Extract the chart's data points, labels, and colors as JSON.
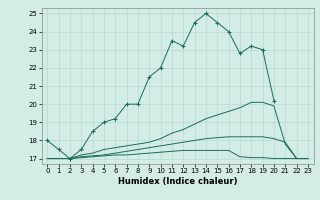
{
  "title": "",
  "xlabel": "Humidex (Indice chaleur)",
  "xlim": [
    -0.5,
    23.5
  ],
  "ylim": [
    16.7,
    25.3
  ],
  "yticks": [
    17,
    18,
    19,
    20,
    21,
    22,
    23,
    24,
    25
  ],
  "xticks": [
    0,
    1,
    2,
    3,
    4,
    5,
    6,
    7,
    8,
    9,
    10,
    11,
    12,
    13,
    14,
    15,
    16,
    17,
    18,
    19,
    20,
    21,
    22,
    23
  ],
  "bg_color": "#d4ece6",
  "line_color": "#1a6b5e",
  "grid_color": "#b8d8d0",
  "lines": [
    {
      "x": [
        0,
        1,
        2,
        3,
        4,
        5,
        6,
        7,
        8,
        9,
        10,
        11,
        12,
        13,
        14,
        15,
        16,
        17,
        18,
        19,
        20
      ],
      "y": [
        18.0,
        17.5,
        17.0,
        17.5,
        18.5,
        19.0,
        19.2,
        20.0,
        20.0,
        21.5,
        22.0,
        23.5,
        23.2,
        24.5,
        25.0,
        24.5,
        24.0,
        22.8,
        23.2,
        23.0,
        20.2
      ],
      "marker": true
    },
    {
      "x": [
        0,
        1,
        2,
        3,
        4,
        5,
        6,
        7,
        8,
        9,
        10,
        11,
        12,
        13,
        14,
        15,
        16,
        17,
        18,
        19,
        20,
        21,
        22,
        23
      ],
      "y": [
        17.0,
        17.0,
        17.0,
        17.2,
        17.3,
        17.5,
        17.6,
        17.7,
        17.8,
        17.9,
        18.1,
        18.4,
        18.6,
        18.9,
        19.2,
        19.4,
        19.6,
        19.8,
        20.1,
        20.1,
        19.9,
        17.8,
        17.0,
        17.0
      ],
      "marker": false
    },
    {
      "x": [
        0,
        1,
        2,
        3,
        4,
        5,
        6,
        7,
        8,
        9,
        10,
        11,
        12,
        13,
        14,
        15,
        16,
        17,
        18,
        19,
        20,
        21,
        22,
        23
      ],
      "y": [
        17.0,
        17.0,
        17.0,
        17.05,
        17.1,
        17.15,
        17.2,
        17.2,
        17.25,
        17.3,
        17.35,
        17.4,
        17.45,
        17.45,
        17.45,
        17.45,
        17.45,
        17.1,
        17.05,
        17.05,
        17.0,
        17.0,
        17.0,
        17.0
      ],
      "marker": false
    },
    {
      "x": [
        0,
        1,
        2,
        3,
        4,
        5,
        6,
        7,
        8,
        9,
        10,
        11,
        12,
        13,
        14,
        15,
        16,
        17,
        18,
        19,
        20,
        21,
        22,
        23
      ],
      "y": [
        17.0,
        17.0,
        17.0,
        17.1,
        17.15,
        17.2,
        17.3,
        17.4,
        17.5,
        17.6,
        17.7,
        17.8,
        17.9,
        18.0,
        18.1,
        18.15,
        18.2,
        18.2,
        18.2,
        18.2,
        18.1,
        17.9,
        17.0,
        17.0
      ],
      "marker": false
    }
  ]
}
